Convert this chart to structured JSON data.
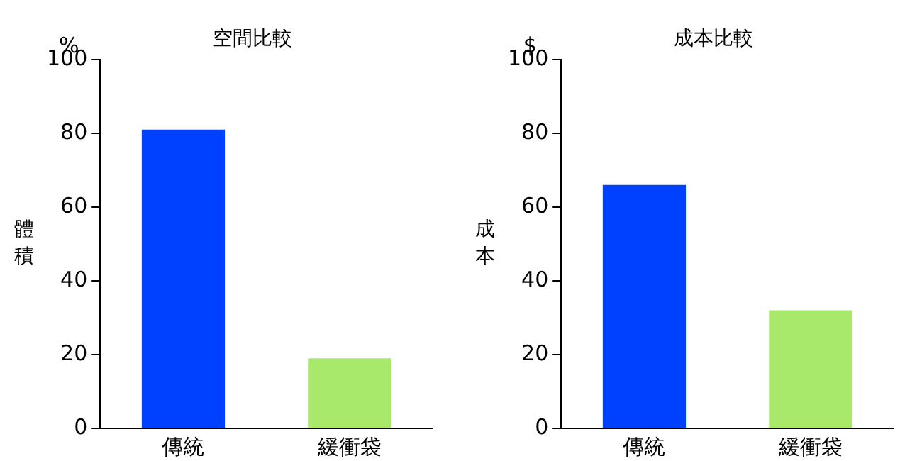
{
  "chart_data": [
    {
      "type": "bar",
      "title": "空間比較",
      "ylabel": "體積",
      "annotations": [
        "%"
      ],
      "categories": [
        "傳統",
        "緩衝袋"
      ],
      "values": [
        81,
        19
      ],
      "colors": [
        "#0040ff",
        "#a8e86a"
      ],
      "ylim": [
        0,
        100
      ],
      "yticks": [
        0,
        20,
        40,
        60,
        80,
        100
      ]
    },
    {
      "type": "bar",
      "title": "成本比較",
      "ylabel": "成本",
      "annotations": [
        "$"
      ],
      "categories": [
        "傳統",
        "緩衝袋"
      ],
      "values": [
        66,
        32
      ],
      "colors": [
        "#0040ff",
        "#a8e86a"
      ],
      "ylim": [
        0,
        100
      ],
      "yticks": [
        0,
        20,
        40,
        60,
        80,
        100
      ]
    }
  ]
}
